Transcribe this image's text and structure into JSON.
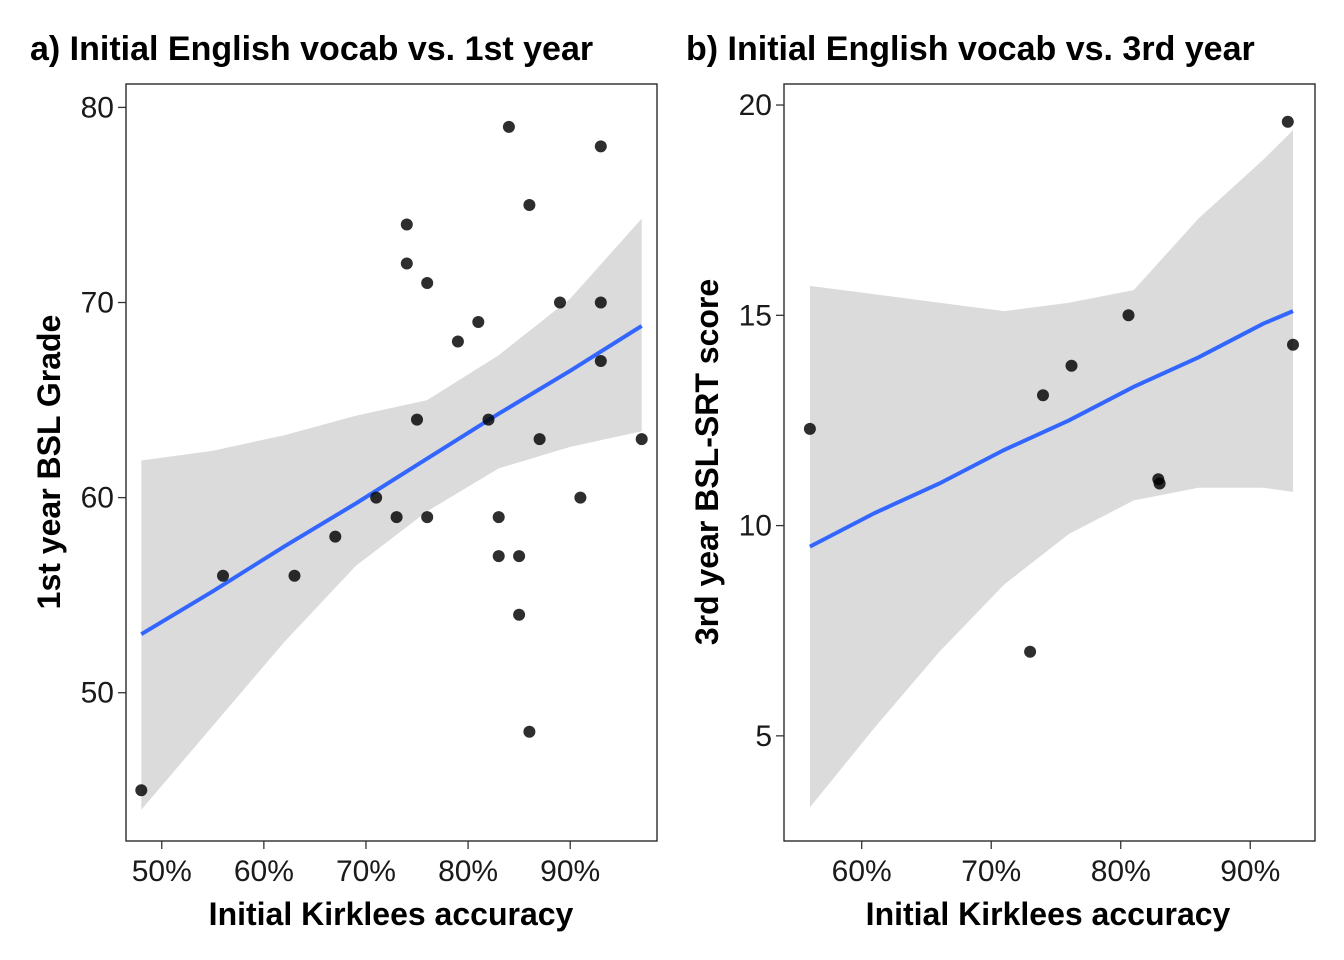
{
  "chart_data": [
    {
      "type": "scatter",
      "title": "a) Initial English vocab vs. 1st year",
      "xlabel": "Initial Kirklees accuracy",
      "ylabel": "1st year BSL Grade",
      "xlim": [
        0.465,
        0.985
      ],
      "ylim": [
        42.4,
        81.2
      ],
      "x_ticks": [
        0.5,
        0.6,
        0.7,
        0.8,
        0.9
      ],
      "x_tick_labels": [
        "50%",
        "60%",
        "70%",
        "80%",
        "90%"
      ],
      "y_ticks": [
        50,
        60,
        70,
        80
      ],
      "y_tick_labels": [
        "50",
        "60",
        "70",
        "80"
      ],
      "grid": false,
      "points": [
        {
          "x": 0.48,
          "y": 45
        },
        {
          "x": 0.56,
          "y": 56
        },
        {
          "x": 0.63,
          "y": 56
        },
        {
          "x": 0.67,
          "y": 58
        },
        {
          "x": 0.71,
          "y": 60
        },
        {
          "x": 0.73,
          "y": 59
        },
        {
          "x": 0.74,
          "y": 74
        },
        {
          "x": 0.74,
          "y": 72
        },
        {
          "x": 0.75,
          "y": 64
        },
        {
          "x": 0.76,
          "y": 71
        },
        {
          "x": 0.76,
          "y": 59
        },
        {
          "x": 0.79,
          "y": 68
        },
        {
          "x": 0.81,
          "y": 69
        },
        {
          "x": 0.82,
          "y": 64
        },
        {
          "x": 0.83,
          "y": 59
        },
        {
          "x": 0.83,
          "y": 57
        },
        {
          "x": 0.84,
          "y": 79
        },
        {
          "x": 0.85,
          "y": 57
        },
        {
          "x": 0.85,
          "y": 54
        },
        {
          "x": 0.86,
          "y": 75
        },
        {
          "x": 0.86,
          "y": 48
        },
        {
          "x": 0.87,
          "y": 63
        },
        {
          "x": 0.89,
          "y": 70
        },
        {
          "x": 0.91,
          "y": 60
        },
        {
          "x": 0.93,
          "y": 78
        },
        {
          "x": 0.93,
          "y": 70
        },
        {
          "x": 0.93,
          "y": 67
        },
        {
          "x": 0.97,
          "y": 63
        }
      ],
      "fit": {
        "x": [
          0.48,
          0.55,
          0.62,
          0.69,
          0.76,
          0.83,
          0.9,
          0.97
        ],
        "y": [
          53.0,
          55.2,
          57.5,
          59.7,
          62.0,
          64.3,
          66.5,
          68.8
        ],
        "lower": [
          44.0,
          48.3,
          52.6,
          56.5,
          59.3,
          61.5,
          62.6,
          63.4
        ],
        "upper": [
          61.9,
          62.4,
          63.2,
          64.2,
          65.0,
          67.3,
          70.2,
          74.3
        ]
      },
      "colors": {
        "point": "#000000",
        "fit_line": "#3366ff",
        "ribbon": "#d9d9d9"
      }
    },
    {
      "type": "scatter",
      "title": "b) Initial English vocab vs. 3rd year",
      "xlabel": "Initial Kirklees accuracy",
      "ylabel": "3rd year BSL-SRT score",
      "xlim": [
        0.54,
        0.95
      ],
      "ylim": [
        2.5,
        20.5
      ],
      "x_ticks": [
        0.6,
        0.7,
        0.8,
        0.9
      ],
      "x_tick_labels": [
        "60%",
        "70%",
        "80%",
        "90%"
      ],
      "y_ticks": [
        5,
        10,
        15,
        20
      ],
      "y_tick_labels": [
        "5",
        "10",
        "15",
        "20"
      ],
      "grid": false,
      "points": [
        {
          "x": 0.56,
          "y": 12.3
        },
        {
          "x": 0.73,
          "y": 7.0
        },
        {
          "x": 0.74,
          "y": 13.1
        },
        {
          "x": 0.762,
          "y": 13.8
        },
        {
          "x": 0.806,
          "y": 15.0
        },
        {
          "x": 0.829,
          "y": 11.1
        },
        {
          "x": 0.83,
          "y": 11.0
        },
        {
          "x": 0.929,
          "y": 19.6
        },
        {
          "x": 0.933,
          "y": 14.3
        }
      ],
      "fit": {
        "x": [
          0.56,
          0.61,
          0.66,
          0.71,
          0.76,
          0.81,
          0.86,
          0.91,
          0.933
        ],
        "y": [
          9.5,
          10.3,
          11.0,
          11.8,
          12.5,
          13.3,
          14.0,
          14.8,
          15.1
        ],
        "lower": [
          3.3,
          5.2,
          7.0,
          8.6,
          9.8,
          10.6,
          10.9,
          10.9,
          10.8
        ],
        "upper": [
          15.7,
          15.5,
          15.3,
          15.1,
          15.3,
          15.6,
          17.3,
          18.7,
          19.4
        ]
      },
      "colors": {
        "point": "#000000",
        "fit_line": "#3366ff",
        "ribbon": "#d9d9d9"
      }
    }
  ]
}
